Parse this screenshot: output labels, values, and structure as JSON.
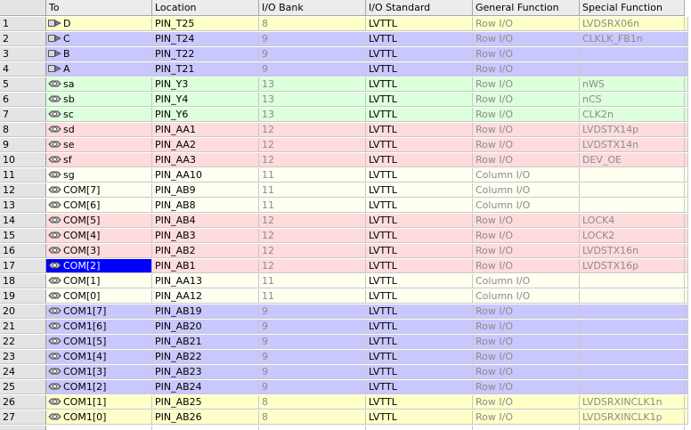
{
  "columns": [
    "To",
    "Location",
    "I/O Bank",
    "I/O Standard",
    "General Function",
    "Special Function",
    ""
  ],
  "selected_row": 17,
  "colors": {
    "yellow": "#ffffc8",
    "blue": "#c8c8ff",
    "green": "#dcffdc",
    "pink": "#ffdcdc",
    "cream": "#fffff0"
  },
  "rows": [
    {
      "num": "1",
      "to": "D",
      "dir": "out",
      "location": "PIN_T25",
      "bank": "8",
      "standard": "LVTTL",
      "general": "Row I/O",
      "special": "LVDSRX06n",
      "color": "yellow"
    },
    {
      "num": "2",
      "to": "C",
      "dir": "out",
      "location": "PIN_T24",
      "bank": "9",
      "standard": "LVTTL",
      "general": "Row I/O",
      "special": "CLKLK_FB1n",
      "color": "blue"
    },
    {
      "num": "3",
      "to": "B",
      "dir": "out",
      "location": "PIN_T22",
      "bank": "9",
      "standard": "LVTTL",
      "general": "Row I/O",
      "special": "",
      "color": "blue"
    },
    {
      "num": "4",
      "to": "A",
      "dir": "out",
      "location": "PIN_T21",
      "bank": "9",
      "standard": "LVTTL",
      "general": "Row I/O",
      "special": "",
      "color": "blue"
    },
    {
      "num": "5",
      "to": "sa",
      "dir": "io",
      "location": "PIN_Y3",
      "bank": "13",
      "standard": "LVTTL",
      "general": "Row I/O",
      "special": "nWS",
      "color": "green"
    },
    {
      "num": "6",
      "to": "sb",
      "dir": "io",
      "location": "PIN_Y4",
      "bank": "13",
      "standard": "LVTTL",
      "general": "Row I/O",
      "special": "nCS",
      "color": "green"
    },
    {
      "num": "7",
      "to": "sc",
      "dir": "io",
      "location": "PIN_Y6",
      "bank": "13",
      "standard": "LVTTL",
      "general": "Row I/O",
      "special": "CLK2n",
      "color": "green"
    },
    {
      "num": "8",
      "to": "sd",
      "dir": "io",
      "location": "PIN_AA1",
      "bank": "12",
      "standard": "LVTTL",
      "general": "Row I/O",
      "special": "LVDSTX14p",
      "color": "pink"
    },
    {
      "num": "9",
      "to": "se",
      "dir": "io",
      "location": "PIN_AA2",
      "bank": "12",
      "standard": "LVTTL",
      "general": "Row I/O",
      "special": "LVDSTX14n",
      "color": "pink"
    },
    {
      "num": "10",
      "to": "sf",
      "dir": "io",
      "location": "PIN_AA3",
      "bank": "12",
      "standard": "LVTTL",
      "general": "Row I/O",
      "special": "DEV_OE",
      "color": "pink"
    },
    {
      "num": "11",
      "to": "sg",
      "dir": "io",
      "location": "PIN_AA10",
      "bank": "11",
      "standard": "LVTTL",
      "general": "Column I/O",
      "special": "",
      "color": "cream"
    },
    {
      "num": "12",
      "to": "COM[7]",
      "dir": "io",
      "location": "PIN_AB9",
      "bank": "11",
      "standard": "LVTTL",
      "general": "Column I/O",
      "special": "",
      "color": "cream"
    },
    {
      "num": "13",
      "to": "COM[6]",
      "dir": "io",
      "location": "PIN_AB8",
      "bank": "11",
      "standard": "LVTTL",
      "general": "Column I/O",
      "special": "",
      "color": "cream"
    },
    {
      "num": "14",
      "to": "COM[5]",
      "dir": "io",
      "location": "PIN_AB4",
      "bank": "12",
      "standard": "LVTTL",
      "general": "Row I/O",
      "special": "LOCK4",
      "color": "pink"
    },
    {
      "num": "15",
      "to": "COM[4]",
      "dir": "io",
      "location": "PIN_AB3",
      "bank": "12",
      "standard": "LVTTL",
      "general": "Row I/O",
      "special": "LOCK2",
      "color": "pink"
    },
    {
      "num": "16",
      "to": "COM[3]",
      "dir": "io",
      "location": "PIN_AB2",
      "bank": "12",
      "standard": "LVTTL",
      "general": "Row I/O",
      "special": "LVDSTX16n",
      "color": "pink"
    },
    {
      "num": "17",
      "to": "COM[2]",
      "dir": "io",
      "location": "PIN_AB1",
      "bank": "12",
      "standard": "LVTTL",
      "general": "Row I/O",
      "special": "LVDSTX16p",
      "color": "pink"
    },
    {
      "num": "18",
      "to": "COM[1]",
      "dir": "io",
      "location": "PIN_AA13",
      "bank": "11",
      "standard": "LVTTL",
      "general": "Column I/O",
      "special": "",
      "color": "cream"
    },
    {
      "num": "19",
      "to": "COM[0]",
      "dir": "io",
      "location": "PIN_AA12",
      "bank": "11",
      "standard": "LVTTL",
      "general": "Column I/O",
      "special": "",
      "color": "cream"
    },
    {
      "num": "20",
      "to": "COM1[7]",
      "dir": "io",
      "location": "PIN_AB19",
      "bank": "9",
      "standard": "LVTTL",
      "general": "Row I/O",
      "special": "",
      "color": "blue"
    },
    {
      "num": "21",
      "to": "COM1[6]",
      "dir": "io",
      "location": "PIN_AB20",
      "bank": "9",
      "standard": "LVTTL",
      "general": "Row I/O",
      "special": "",
      "color": "blue"
    },
    {
      "num": "22",
      "to": "COM1[5]",
      "dir": "io",
      "location": "PIN_AB21",
      "bank": "9",
      "standard": "LVTTL",
      "general": "Row I/O",
      "special": "",
      "color": "blue"
    },
    {
      "num": "23",
      "to": "COM1[4]",
      "dir": "io",
      "location": "PIN_AB22",
      "bank": "9",
      "standard": "LVTTL",
      "general": "Row I/O",
      "special": "",
      "color": "blue"
    },
    {
      "num": "24",
      "to": "COM1[3]",
      "dir": "io",
      "location": "PIN_AB23",
      "bank": "9",
      "standard": "LVTTL",
      "general": "Row I/O",
      "special": "",
      "color": "blue"
    },
    {
      "num": "25",
      "to": "COM1[2]",
      "dir": "io",
      "location": "PIN_AB24",
      "bank": "9",
      "standard": "LVTTL",
      "general": "Row I/O",
      "special": "",
      "color": "blue"
    },
    {
      "num": "26",
      "to": "COM1[1]",
      "dir": "io",
      "location": "PIN_AB25",
      "bank": "8",
      "standard": "LVTTL",
      "general": "Row I/O",
      "special": "LVDSRXINCLK1n",
      "color": "yellow"
    },
    {
      "num": "27",
      "to": "COM1[0]",
      "dir": "io",
      "location": "PIN_AB26",
      "bank": "8",
      "standard": "LVTTL",
      "general": "Row I/O",
      "special": "LVDSRXINCLK1p",
      "color": "yellow"
    }
  ]
}
